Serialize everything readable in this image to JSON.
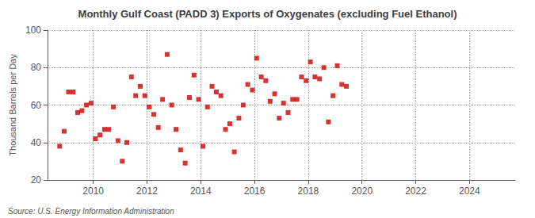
{
  "chart_data": {
    "type": "scatter",
    "title": "Monthly Gulf Coast (PADD 3) Exports of Oxygenates (excluding Fuel Ethanol)",
    "ylabel": "Thousand Barrels per Day",
    "annotations": [
      "Source: U.S. Energy Information Administration"
    ],
    "color": "#cc0000",
    "marker": "square",
    "grid": true,
    "xlim": [
      2008.3,
      2025.7
    ],
    "xticks": [
      2010,
      2012,
      2014,
      2016,
      2018,
      2020,
      2022,
      2024
    ],
    "ylim": [
      20,
      100
    ],
    "yticks": [
      20,
      40,
      60,
      80,
      100
    ],
    "x": [
      2008.75,
      2008.92,
      2009.08,
      2009.25,
      2009.42,
      2009.58,
      2009.75,
      2009.92,
      2010.08,
      2010.25,
      2010.42,
      2010.58,
      2010.75,
      2010.92,
      2011.08,
      2011.25,
      2011.42,
      2011.58,
      2011.75,
      2011.92,
      2012.08,
      2012.25,
      2012.42,
      2012.58,
      2012.75,
      2012.92,
      2013.08,
      2013.25,
      2013.42,
      2013.58,
      2013.75,
      2013.92,
      2014.08,
      2014.25,
      2014.42,
      2014.58,
      2014.75,
      2014.92,
      2015.08,
      2015.25,
      2015.42,
      2015.58,
      2015.75,
      2015.92,
      2016.08,
      2016.25,
      2016.42,
      2016.58,
      2016.75,
      2016.92,
      2017.08,
      2017.25,
      2017.42,
      2017.58,
      2017.75,
      2017.92,
      2018.08,
      2018.25,
      2018.42,
      2018.58,
      2018.75,
      2018.92,
      2019.08,
      2019.25,
      2019.42
    ],
    "values": [
      38,
      46,
      67,
      67,
      56,
      57,
      60,
      61,
      42,
      44,
      47,
      47,
      59,
      41,
      30,
      40,
      75,
      65,
      70,
      65,
      59,
      55,
      48,
      63,
      87,
      60,
      47,
      36,
      29,
      64,
      76,
      63,
      38,
      59,
      70,
      67,
      65,
      47,
      50,
      35,
      53,
      60,
      71,
      68,
      85,
      75,
      73,
      62,
      66,
      53,
      61,
      56,
      63,
      63,
      75,
      73,
      83,
      75,
      74,
      80,
      51,
      65,
      81,
      71,
      70
    ]
  }
}
